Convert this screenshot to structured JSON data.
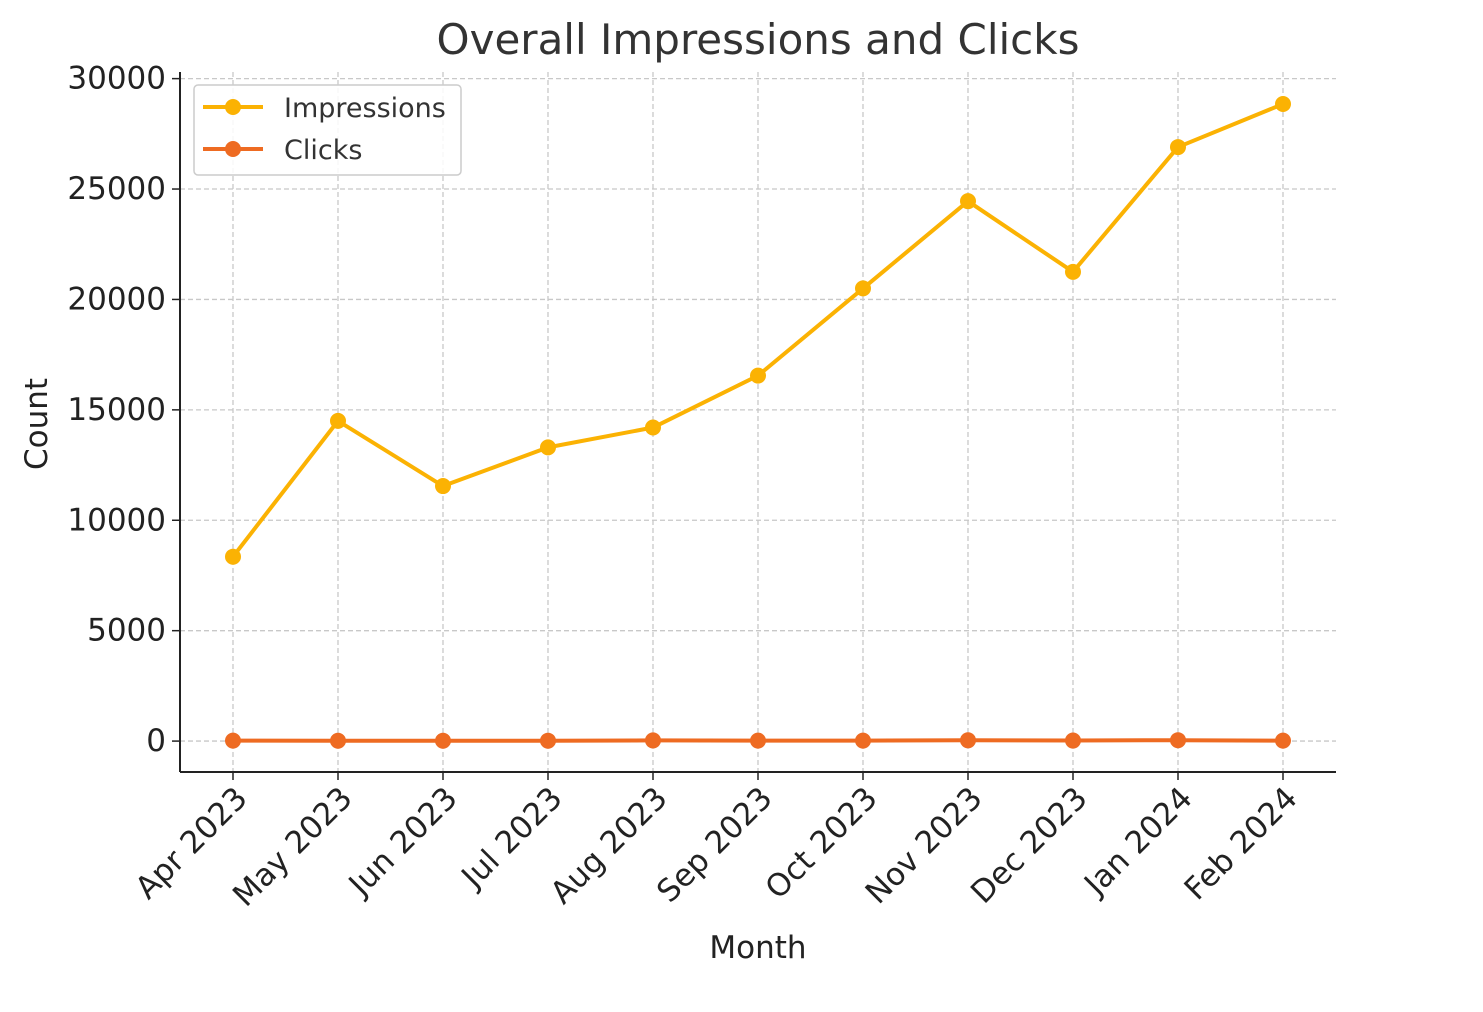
{
  "chart_data": {
    "type": "line",
    "title": "Overall Impressions and Clicks",
    "xlabel": "Month",
    "ylabel": "Count",
    "categories": [
      "Apr 2023",
      "May 2023",
      "Jun 2023",
      "Jul 2023",
      "Aug 2023",
      "Sep 2023",
      "Oct 2023",
      "Nov 2023",
      "Dec 2023",
      "Jan 2024",
      "Feb 2024"
    ],
    "ylim": [
      -1400,
      30300
    ],
    "yticks": [
      0,
      5000,
      10000,
      15000,
      20000,
      25000,
      30000
    ],
    "grid": true,
    "legend_position": "top-left",
    "series": [
      {
        "name": "Impressions",
        "color": "#FBB203",
        "marker": "circle",
        "values": [
          8350,
          14500,
          11550,
          13300,
          14200,
          16550,
          20500,
          24450,
          21250,
          26900,
          28850
        ]
      },
      {
        "name": "Clicks",
        "color": "#EE6B22",
        "marker": "circle",
        "values": [
          20,
          15,
          15,
          18,
          30,
          20,
          22,
          35,
          25,
          40,
          20
        ]
      }
    ]
  }
}
